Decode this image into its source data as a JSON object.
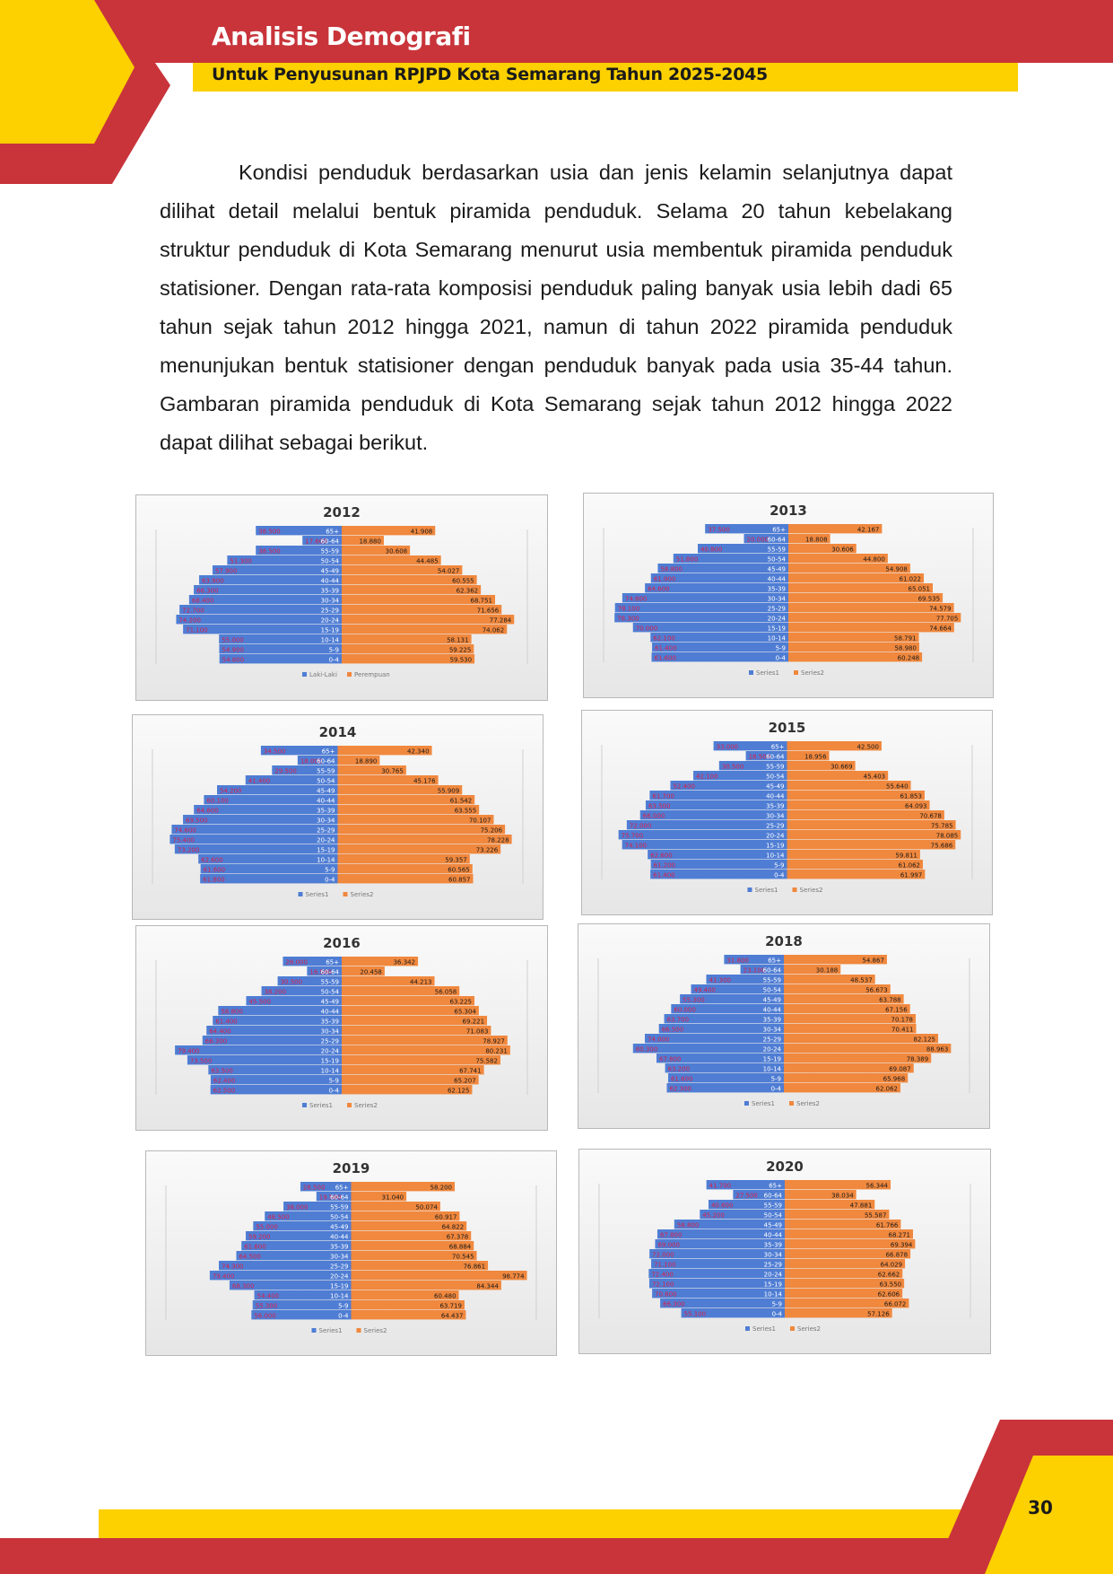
{
  "header": {
    "title": "Analisis Demografi",
    "subtitle": "Untuk Penyusunan RPJPD Kota Semarang Tahun 2025-2045"
  },
  "paragraph": "Kondisi penduduk berdasarkan usia dan jenis kelamin selanjutnya dapat dilihat detail melalui bentuk piramida penduduk. Selama 20 tahun kebelakang struktur penduduk di Kota Semarang menurut usia membentuk piramida penduduk statisioner. Dengan rata-rata komposisi penduduk paling banyak usia lebih dadi 65 tahun sejak tahun 2012 hingga 2021, namun di tahun 2022 piramida penduduk menunjukan bentuk statisioner dengan penduduk banyak pada usia 35-44 tahun. Gambaran piramida penduduk di Kota Semarang sejak tahun 2012 hingga 2022 dapat dilihat sebagai berikut.",
  "page_number": "30",
  "colors": {
    "brand_red": "#c8343a",
    "brand_yellow": "#fdd000",
    "male": "#4f7dd4",
    "female": "#f0883e"
  },
  "chart_data": [
    {
      "type": "bar",
      "title": "2012",
      "categories": [
        "65+",
        "60-64",
        "55-59",
        "50-54",
        "45-49",
        "40-44",
        "35-39",
        "30-34",
        "25-29",
        "20-24",
        "15-19",
        "10-14",
        "5-9",
        "0-4"
      ],
      "series": [
        {
          "name": "Laki-Laki",
          "values": [
            38.5,
            17.6,
            38.5,
            51.3,
            57.9,
            63.9,
            66.3,
            68.4,
            72.7,
            74.2,
            71.1,
            55.0,
            54.9,
            54.8
          ]
        },
        {
          "name": "Perempuan",
          "values": [
            41.908,
            18.88,
            30.608,
            44.485,
            54.027,
            60.555,
            62.362,
            68.751,
            71.656,
            77.284,
            74.062,
            58.131,
            59.225,
            59.53
          ]
        }
      ],
      "xlim": [
        -80,
        80
      ],
      "legend": "bottom"
    },
    {
      "type": "bar",
      "title": "2013",
      "categories": [
        "65+",
        "60-64",
        "55-59",
        "50-54",
        "45-49",
        "40-44",
        "35-39",
        "30-34",
        "25-29",
        "20-24",
        "15-19",
        "10-14",
        "5-9",
        "0-4"
      ],
      "series": [
        {
          "name": "Series1",
          "values": [
            37.5,
            20.0,
            40.8,
            51.8,
            58.8,
            61.9,
            64.6,
            74.8,
            78.1,
            78.3,
            70.0,
            62.1,
            61.4,
            61.6
          ]
        },
        {
          "name": "Series2",
          "values": [
            42.167,
            18.808,
            30.606,
            44.8,
            54.908,
            61.022,
            65.051,
            69.535,
            74.579,
            77.705,
            74.664,
            58.791,
            58.98,
            60.248
          ]
        }
      ],
      "xlim": [
        -80,
        80
      ],
      "legend": "bottom"
    },
    {
      "type": "bar",
      "title": "2014",
      "categories": [
        "65+",
        "60-64",
        "55-59",
        "50-54",
        "45-49",
        "40-44",
        "35-39",
        "30-34",
        "25-29",
        "20-24",
        "15-19",
        "10-14",
        "5-9",
        "0-4"
      ],
      "series": [
        {
          "name": "Series1",
          "values": [
            34.5,
            18.0,
            29.5,
            41.4,
            54.2,
            60.1,
            64.6,
            69.5,
            74.6,
            75.4,
            73.2,
            62.6,
            61.6,
            61.8
          ]
        },
        {
          "name": "Series2",
          "values": [
            42.34,
            18.89,
            30.765,
            45.176,
            55.909,
            61.542,
            63.555,
            70.107,
            75.206,
            78.228,
            73.226,
            59.357,
            60.565,
            60.857
          ]
        }
      ],
      "xlim": [
        -80,
        80
      ],
      "legend": "bottom"
    },
    {
      "type": "bar",
      "title": "2015",
      "categories": [
        "65+",
        "60-64",
        "55-59",
        "50-54",
        "45-49",
        "40-44",
        "35-39",
        "30-34",
        "25-29",
        "20-24",
        "15-19",
        "10-14",
        "5-9",
        "0-4"
      ],
      "series": [
        {
          "name": "Series1",
          "values": [
            33.0,
            18.5,
            30.5,
            42.1,
            52.4,
            61.7,
            63.5,
            66.0,
            72.0,
            75.7,
            74.1,
            62.6,
            61.2,
            61.4
          ]
        },
        {
          "name": "Series2",
          "values": [
            42.5,
            18.956,
            30.669,
            45.403,
            55.64,
            61.853,
            64.093,
            70.678,
            75.785,
            78.085,
            75.686,
            59.811,
            61.062,
            61.997
          ]
        }
      ],
      "xlim": [
        -80,
        80
      ],
      "legend": "bottom"
    },
    {
      "type": "bar",
      "title": "2016",
      "categories": [
        "65+",
        "60-64",
        "55-59",
        "50-54",
        "45-49",
        "40-44",
        "35-39",
        "30-34",
        "25-29",
        "20-24",
        "15-19",
        "10-14",
        "5-9",
        "0-4"
      ],
      "series": [
        {
          "name": "Series1",
          "values": [
            28.0,
            16.5,
            30.5,
            38.2,
            45.5,
            58.8,
            61.4,
            64.4,
            66.3,
            79.4,
            73.5,
            63.5,
            62.4,
            62.5
          ]
        },
        {
          "name": "Series2",
          "values": [
            36.342,
            20.458,
            44.213,
            56.058,
            63.225,
            65.304,
            69.221,
            71.083,
            78.927,
            80.231,
            75.582,
            67.741,
            65.207,
            62.125
          ]
        }
      ],
      "xlim": [
        -85,
        85
      ],
      "legend": "bottom"
    },
    {
      "type": "bar",
      "title": "2018",
      "categories": [
        "65+",
        "60-64",
        "55-59",
        "50-54",
        "45-49",
        "40-44",
        "35-39",
        "30-34",
        "25-29",
        "20-24",
        "15-19",
        "10-14",
        "5-9",
        "0-4"
      ],
      "series": [
        {
          "name": "Series1",
          "values": [
            31.8,
            23.1,
            41.3,
            49.4,
            55.3,
            60.0,
            63.7,
            66.5,
            74.0,
            80.3,
            67.8,
            63.2,
            61.6,
            62.3
          ]
        },
        {
          "name": "Series2",
          "values": [
            54.867,
            30.188,
            48.537,
            56.673,
            63.788,
            67.156,
            70.178,
            70.411,
            82.125,
            88.963,
            78.389,
            69.087,
            65.968,
            62.062
          ]
        }
      ],
      "xlim": [
        -95,
        95
      ],
      "legend": "bottom"
    },
    {
      "type": "bar",
      "title": "2019",
      "categories": [
        "65+",
        "60-64",
        "55-59",
        "50-54",
        "45-49",
        "40-44",
        "35-39",
        "30-34",
        "25-29",
        "20-24",
        "15-19",
        "10-14",
        "5-9",
        "0-4"
      ],
      "series": [
        {
          "name": "Series1",
          "values": [
            28.5,
            19.5,
            38.0,
            48.5,
            55.0,
            59.2,
            61.6,
            64.5,
            74.3,
            79.4,
            68.3,
            54.4,
            55.3,
            56.0
          ]
        },
        {
          "name": "Series2",
          "values": [
            58.2,
            31.04,
            50.074,
            60.917,
            64.822,
            67.378,
            68.884,
            70.545,
            76.861,
            98.774,
            84.344,
            60.48,
            63.719,
            64.437
          ]
        }
      ],
      "xlim": [
        -100,
        100
      ],
      "legend": "bottom"
    },
    {
      "type": "bar",
      "title": "2020",
      "categories": [
        "65+",
        "60-64",
        "55-59",
        "50-54",
        "45-49",
        "40-44",
        "35-39",
        "30-34",
        "25-29",
        "20-24",
        "15-19",
        "10-14",
        "5-9",
        "0-4"
      ],
      "series": [
        {
          "name": "Series1",
          "values": [
            41.7,
            27.5,
            40.6,
            45.2,
            58.8,
            67.8,
            69.0,
            72.0,
            71.1,
            72.4,
            72.1,
            70.6,
            66.3,
            55.1
          ]
        },
        {
          "name": "Series2",
          "values": [
            56.344,
            38.034,
            47.881,
            55.587,
            61.766,
            68.271,
            69.394,
            66.878,
            64.029,
            62.662,
            63.55,
            62.606,
            66.072,
            57.126
          ]
        }
      ],
      "xlim": [
        -95,
        95
      ],
      "legend": "bottom"
    }
  ]
}
